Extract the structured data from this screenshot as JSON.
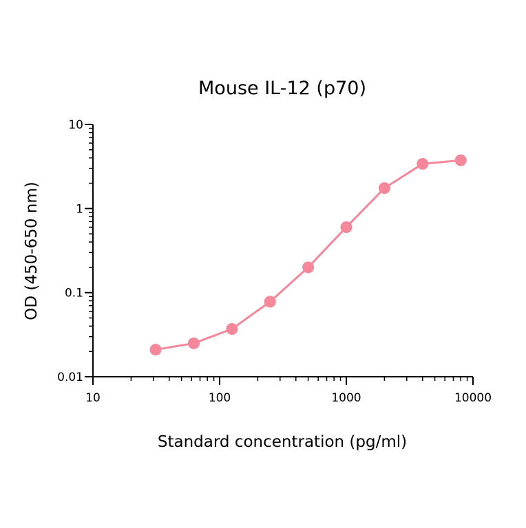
{
  "chart_data": {
    "type": "line",
    "title": "Mouse IL-12 (p70)",
    "xlabel": "Standard concentration (pg/ml)",
    "ylabel": "OD (450-650 nm)",
    "x_scale": "log",
    "y_scale": "log",
    "xlim": [
      10,
      10000
    ],
    "ylim": [
      0.01,
      10
    ],
    "x_ticks": [
      {
        "value": 10,
        "label": "10"
      },
      {
        "value": 100,
        "label": "100"
      },
      {
        "value": 1000,
        "label": "1000"
      },
      {
        "value": 10000,
        "label": "10000"
      }
    ],
    "y_ticks": [
      {
        "value": 0.01,
        "label": "0.01"
      },
      {
        "value": 0.1,
        "label": "0.1"
      },
      {
        "value": 1,
        "label": "1"
      },
      {
        "value": 10,
        "label": "10"
      }
    ],
    "grid": false,
    "series": [
      {
        "color": "#f4879a",
        "points": [
          {
            "x": 31.25,
            "y": 0.021
          },
          {
            "x": 62.5,
            "y": 0.025
          },
          {
            "x": 125,
            "y": 0.037
          },
          {
            "x": 250,
            "y": 0.078
          },
          {
            "x": 500,
            "y": 0.2
          },
          {
            "x": 1000,
            "y": 0.6
          },
          {
            "x": 2000,
            "y": 1.75
          },
          {
            "x": 4000,
            "y": 3.4
          },
          {
            "x": 8000,
            "y": 3.75
          }
        ]
      }
    ]
  }
}
